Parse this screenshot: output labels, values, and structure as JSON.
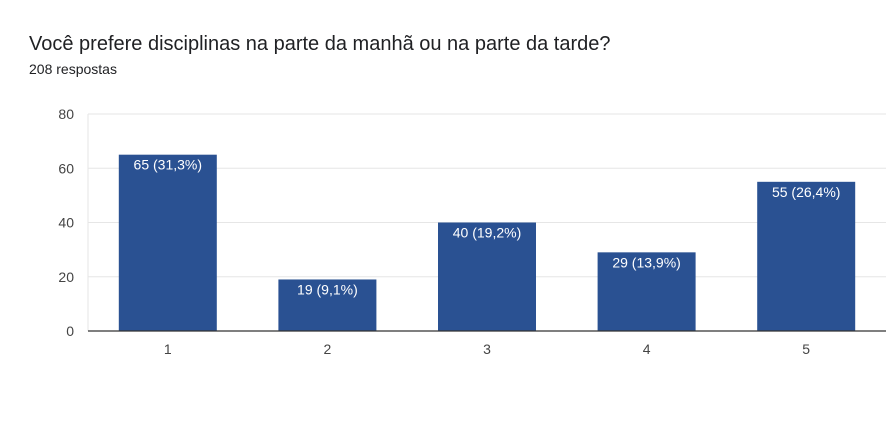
{
  "header": {
    "question": "Você prefere disciplinas na parte da manhã ou na parte da tarde?",
    "responses": "208 respostas"
  },
  "chart_data": {
    "type": "bar",
    "categories": [
      "1",
      "2",
      "3",
      "4",
      "5"
    ],
    "values": [
      65,
      19,
      40,
      29,
      55
    ],
    "data_labels": [
      "65 (31,3%)",
      "19 (9,1%)",
      "40 (19,2%)",
      "29 (13,9%)",
      "55 (26,4%)"
    ],
    "title": "Você prefere disciplinas na parte da manhã ou na parte da tarde?",
    "xlabel": "",
    "ylabel": "",
    "ylim": [
      0,
      80
    ],
    "yticks": [
      0,
      20,
      40,
      60,
      80
    ],
    "grid": true,
    "legend": "none",
    "bar_color": "#2a5192"
  }
}
